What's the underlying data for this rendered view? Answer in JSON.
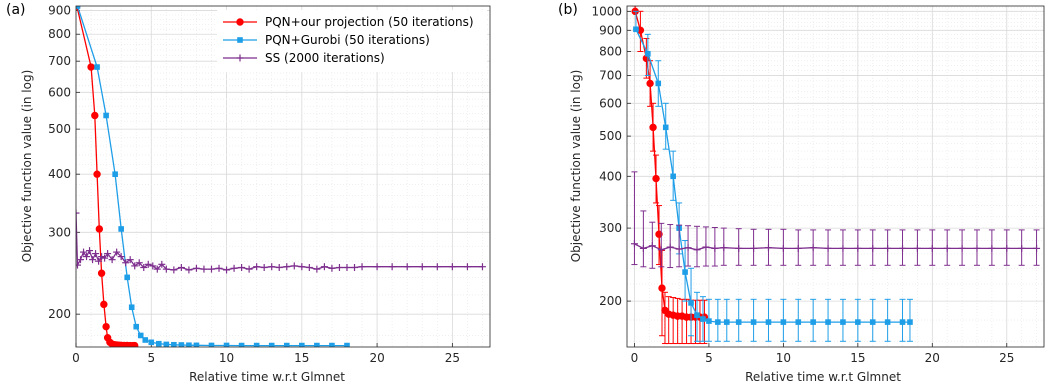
{
  "chart_data": [
    {
      "type": "line",
      "panel_label": "(a)",
      "xlabel": "Relative time w.r.t Glmnet",
      "ylabel": "Objective function value (in log)",
      "xlim": [
        0,
        27.5
      ],
      "ylim": [
        170,
        920
      ],
      "yscale": "log",
      "xticks": [
        0,
        5,
        10,
        15,
        20,
        25
      ],
      "yticks": [
        200,
        300,
        400,
        500,
        600,
        700,
        800,
        900
      ],
      "grid": true,
      "legend": "top-right",
      "series": [
        {
          "name": "PQN+our projection (50 iterations)",
          "color": "#ff0000",
          "marker": "circle",
          "x": [
            0.05,
            1.0,
            1.25,
            1.4,
            1.55,
            1.7,
            1.85,
            2.0,
            2.1,
            2.25,
            2.4,
            2.55,
            2.7,
            2.85,
            3.0,
            3.2,
            3.4,
            3.6,
            3.8,
            3.9
          ],
          "y": [
            920,
            680,
            535,
            400,
            305,
            245,
            210,
            188,
            178,
            174,
            172.5,
            172,
            171.7,
            171.5,
            171.4,
            171.3,
            171.3,
            171.2,
            171.2,
            171.2
          ]
        },
        {
          "name": "PQN+Gurobi (50 iterations)",
          "color": "#1f9ee8",
          "marker": "square",
          "x": [
            0.1,
            1.4,
            2.0,
            2.6,
            3.0,
            3.4,
            3.7,
            4.0,
            4.3,
            4.6,
            5.0,
            5.5,
            6.0,
            6.5,
            7.0,
            7.5,
            8.0,
            9.0,
            10.0,
            11.0,
            12.0,
            13.0,
            14.0,
            15.0,
            16.0,
            17.0,
            18.0
          ],
          "y": [
            920,
            680,
            535,
            400,
            305,
            240,
            207,
            188,
            180,
            176,
            174,
            172.8,
            172.2,
            171.9,
            171.7,
            171.5,
            171.4,
            171.3,
            171.3,
            171.2,
            171.2,
            171.2,
            171.2,
            171.2,
            171.2,
            171.2,
            171.2
          ]
        },
        {
          "name": "SS (2000 iterations)",
          "color": "#7e2f8e",
          "marker": "plus",
          "x": [
            0.0,
            0.1,
            0.3,
            0.5,
            0.7,
            0.9,
            1.1,
            1.3,
            1.5,
            1.7,
            1.9,
            2.1,
            2.4,
            2.7,
            3.0,
            3.3,
            3.6,
            3.9,
            4.2,
            4.5,
            4.8,
            5.1,
            5.4,
            5.7,
            6.0,
            6.5,
            7.0,
            7.5,
            8.0,
            8.5,
            9.0,
            9.5,
            10.0,
            10.5,
            11.0,
            11.5,
            12.0,
            12.5,
            13.0,
            13.5,
            14.0,
            14.5,
            15.0,
            15.5,
            16.0,
            16.5,
            17.0,
            17.5,
            18.0,
            18.5,
            19.0,
            20.0,
            21.0,
            22.0,
            23.0,
            24.0,
            25.0,
            26.0,
            27.0
          ],
          "y": [
            330,
            255,
            262,
            272,
            266,
            274,
            262,
            270,
            260,
            266,
            264,
            270,
            262,
            272,
            266,
            258,
            262,
            254,
            258,
            252,
            256,
            254,
            250,
            256,
            250,
            249,
            252,
            249,
            251,
            250,
            250,
            251,
            249,
            251,
            252,
            250,
            253,
            252,
            253,
            252,
            253,
            254,
            253,
            252,
            250,
            253,
            251,
            252,
            252,
            252,
            253,
            253,
            253,
            253,
            253,
            253,
            253,
            253,
            253
          ]
        }
      ]
    },
    {
      "type": "line",
      "panel_label": "(b)",
      "xlabel": "Relative time w.r.t Glmnet",
      "ylabel": "Objective function value (in log)",
      "xlim": [
        -0.5,
        27.5
      ],
      "ylim": [
        155,
        1030
      ],
      "yscale": "log",
      "xticks": [
        0,
        5,
        10,
        15,
        20,
        25
      ],
      "yticks": [
        200,
        300,
        400,
        500,
        600,
        700,
        800,
        900,
        1000
      ],
      "grid": true,
      "series": [
        {
          "name": "PQN+our projection (50 iterations)",
          "color": "#ff0000",
          "marker": "circle",
          "x": [
            0.05,
            0.4,
            0.8,
            1.05,
            1.25,
            1.45,
            1.65,
            1.85,
            2.05,
            2.3,
            2.6,
            2.9,
            3.2,
            3.5,
            3.8,
            4.1,
            4.4,
            4.7
          ],
          "y": [
            1000,
            900,
            770,
            670,
            525,
            395,
            290,
            215,
            190,
            186,
            185,
            184,
            184,
            183,
            183,
            183,
            183,
            183
          ],
          "err_low": [
            1000,
            800,
            690,
            590,
            460,
            345,
            245,
            165,
            158,
            158,
            158,
            158,
            158,
            158,
            158,
            158,
            158,
            158
          ],
          "err_high": [
            1030,
            1000,
            860,
            760,
            600,
            450,
            340,
            265,
            210,
            205,
            204,
            203,
            202,
            202,
            201,
            201,
            201,
            201
          ]
        },
        {
          "name": "PQN+Gurobi (50 iterations)",
          "color": "#1f9ee8",
          "marker": "square",
          "x": [
            0.1,
            0.9,
            1.6,
            2.1,
            2.6,
            3.0,
            3.4,
            3.8,
            4.2,
            4.6,
            5.0,
            5.6,
            6.2,
            7.0,
            8.0,
            9.0,
            10.0,
            11.0,
            12.0,
            13.0,
            14.0,
            15.0,
            16.0,
            17.0,
            18.0,
            18.5
          ],
          "y": [
            905,
            790,
            670,
            525,
            400,
            300,
            235,
            198,
            185,
            181,
            179,
            178,
            178,
            178,
            178,
            178,
            178,
            178,
            178,
            178,
            178,
            178,
            178,
            178,
            178,
            178
          ],
          "err_low": [
            905,
            700,
            590,
            465,
            350,
            260,
            200,
            165,
            160,
            160,
            160,
            160,
            160,
            160,
            160,
            160,
            160,
            160,
            160,
            160,
            160,
            160,
            160,
            160,
            160,
            160
          ],
          "err_high": [
            1000,
            880,
            760,
            600,
            460,
            345,
            280,
            240,
            210,
            205,
            202,
            202,
            202,
            202,
            202,
            202,
            202,
            202,
            202,
            202,
            202,
            202,
            202,
            202,
            202,
            202
          ]
        },
        {
          "name": "SS (2000 iterations)",
          "color": "#7e2f8e",
          "marker": "plus",
          "x": [
            0.0,
            0.6,
            1.2,
            1.8,
            2.4,
            3.0,
            3.6,
            4.2,
            4.8,
            5.4,
            6.0,
            7.0,
            8.0,
            9.0,
            10.0,
            11.0,
            12.0,
            13.0,
            14.0,
            15.0,
            16.0,
            17.0,
            18.0,
            19.0,
            20.0,
            21.0,
            22.0,
            23.0,
            24.0,
            25.0,
            26.0,
            27.0
          ],
          "y": [
            275,
            268,
            272,
            266,
            270,
            267,
            269,
            266,
            270,
            268,
            269,
            268,
            268,
            269,
            268,
            268,
            269,
            268,
            268,
            268,
            268,
            268,
            268,
            268,
            268,
            268,
            268,
            268,
            268,
            268,
            268,
            268
          ],
          "err_low": [
            245,
            242,
            240,
            242,
            241,
            242,
            243,
            242,
            243,
            243,
            244,
            244,
            244,
            244,
            244,
            244,
            244,
            244,
            244,
            244,
            244,
            244,
            244,
            244,
            244,
            244,
            244,
            244,
            244,
            244,
            244,
            244
          ],
          "err_high": [
            410,
            330,
            310,
            308,
            306,
            305,
            304,
            303,
            302,
            301,
            300,
            299,
            298,
            298,
            298,
            297,
            297,
            297,
            297,
            297,
            297,
            297,
            297,
            297,
            297,
            297,
            297,
            297,
            297,
            297,
            297,
            297
          ]
        }
      ]
    }
  ]
}
